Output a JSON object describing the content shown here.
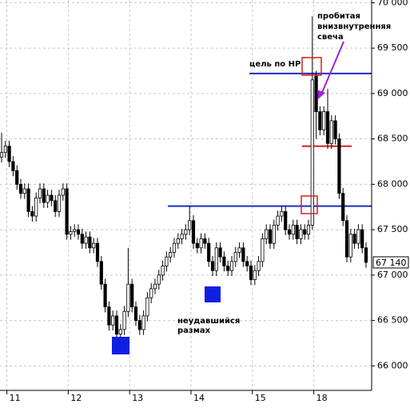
{
  "chart_data": {
    "type": "candlestick",
    "categories": [
      null,
      null,
      "11",
      null,
      null,
      null,
      null,
      null,
      null,
      null,
      null,
      null,
      null,
      null,
      null,
      null,
      null,
      null,
      "12",
      null,
      null,
      null,
      null,
      null,
      null,
      null,
      null,
      null,
      null,
      null,
      null,
      null,
      null,
      null,
      "13",
      null,
      null,
      null,
      null,
      null,
      null,
      null,
      null,
      null,
      null,
      null,
      null,
      null,
      null,
      null,
      "14",
      null,
      null,
      null,
      null,
      null,
      null,
      null,
      null,
      null,
      null,
      null,
      null,
      null,
      null,
      null,
      "15",
      null,
      null,
      null,
      null,
      null,
      null,
      null,
      null,
      null,
      null,
      null,
      null,
      null,
      null,
      null,
      "18",
      null,
      null,
      null,
      null,
      null,
      null,
      null,
      null,
      null,
      null,
      null,
      null,
      null
    ],
    "open": [
      68300,
      68350,
      68420,
      68250,
      68150,
      68000,
      67900,
      67950,
      67700,
      67650,
      67850,
      67950,
      67800,
      67880,
      67820,
      67700,
      67880,
      67950,
      67450,
      67480,
      67500,
      67450,
      67350,
      67420,
      67300,
      67350,
      67150,
      66900,
      66650,
      66450,
      66550,
      66350,
      66400,
      66600,
      66900,
      66650,
      66500,
      66400,
      66550,
      66750,
      66850,
      66900,
      67000,
      67100,
      67200,
      67250,
      67350,
      67400,
      67450,
      67500,
      67600,
      67350,
      67300,
      67400,
      67350,
      67150,
      67050,
      67300,
      67200,
      67100,
      67050,
      67150,
      67250,
      67300,
      67150,
      67100,
      66950,
      67050,
      67150,
      67400,
      67500,
      67350,
      67550,
      67650,
      67700,
      67500,
      67450,
      67550,
      67400,
      67500,
      67450,
      67550,
      69200,
      68800,
      68600,
      68800,
      68450,
      68700,
      68500,
      67900,
      67600,
      67200,
      67450,
      67350,
      67500,
      67300
    ],
    "high": [
      68570,
      68480,
      68480,
      68310,
      68210,
      68060,
      68010,
      68010,
      67760,
      67910,
      68010,
      68010,
      67940,
      67940,
      67880,
      67940,
      68010,
      68010,
      67540,
      67560,
      67560,
      67510,
      67480,
      67480,
      67410,
      67410,
      67210,
      66960,
      66710,
      66610,
      66610,
      66460,
      66660,
      67300,
      66960,
      66710,
      66560,
      66610,
      66810,
      66910,
      66960,
      67060,
      67160,
      67260,
      67310,
      67410,
      67460,
      67510,
      67560,
      67760,
      67660,
      67410,
      67460,
      67460,
      67410,
      67210,
      67360,
      67360,
      67260,
      67160,
      67210,
      67310,
      67360,
      67360,
      67210,
      67160,
      67110,
      67210,
      67460,
      67560,
      67560,
      67610,
      67710,
      67760,
      67760,
      67560,
      67610,
      67610,
      67560,
      67560,
      67610,
      69850,
      69250,
      68860,
      68860,
      69050,
      68760,
      68760,
      68560,
      67960,
      67660,
      67510,
      67510,
      67560,
      67560,
      67360
    ],
    "low": [
      68240,
      68290,
      68190,
      68090,
      67940,
      67840,
      67840,
      67640,
      67590,
      67590,
      67790,
      67740,
      67740,
      67760,
      67640,
      67640,
      67820,
      67390,
      67390,
      67420,
      67390,
      67290,
      67290,
      67240,
      67240,
      67090,
      66840,
      66590,
      66390,
      66390,
      66200,
      66290,
      66340,
      66540,
      66590,
      66440,
      66340,
      66340,
      66490,
      66690,
      66790,
      66840,
      66940,
      67040,
      67140,
      67190,
      67290,
      67340,
      67390,
      67440,
      67290,
      67240,
      67240,
      67290,
      67090,
      66990,
      66990,
      67140,
      67040,
      66990,
      66990,
      67090,
      67190,
      67090,
      67040,
      66890,
      66890,
      66990,
      67090,
      67340,
      67290,
      67290,
      67490,
      67590,
      67440,
      67390,
      67390,
      67340,
      67340,
      67390,
      67390,
      67500,
      68500,
      68540,
      68540,
      68390,
      68390,
      68440,
      67840,
      67540,
      67140,
      67140,
      67290,
      67290,
      67240,
      67080
    ],
    "close": [
      68350,
      68420,
      68250,
      68150,
      68000,
      67900,
      67950,
      67700,
      67650,
      67850,
      67950,
      67800,
      67880,
      67820,
      67700,
      67880,
      67950,
      67450,
      67480,
      67500,
      67450,
      67350,
      67420,
      67300,
      67350,
      67150,
      66900,
      66650,
      66450,
      66550,
      66350,
      66400,
      66600,
      66900,
      66650,
      66500,
      66400,
      66550,
      66750,
      66850,
      66900,
      67000,
      67100,
      67200,
      67250,
      67350,
      67400,
      67450,
      67500,
      67600,
      67350,
      67300,
      67400,
      67350,
      67150,
      67050,
      67300,
      67200,
      67100,
      67050,
      67150,
      67250,
      67300,
      67150,
      67100,
      66950,
      67050,
      67150,
      67400,
      67500,
      67350,
      67550,
      67650,
      67700,
      67500,
      67450,
      67550,
      67400,
      67500,
      67450,
      67550,
      69150,
      68800,
      68600,
      68800,
      68450,
      68700,
      68500,
      67900,
      67600,
      67200,
      67450,
      67350,
      67500,
      67300,
      67140
    ],
    "last_price_label": "67 140",
    "ylim": [
      65730,
      70030
    ],
    "yticks": [
      {
        "value": 70000,
        "label": "70 000"
      },
      {
        "value": 69500,
        "label": "69 500"
      },
      {
        "value": 69000,
        "label": "69 000"
      },
      {
        "value": 68500,
        "label": "68 500"
      },
      {
        "value": 68000,
        "label": "68 000"
      },
      {
        "value": 67500,
        "label": "67 500"
      },
      {
        "value": 67000,
        "label": "67 000"
      },
      {
        "value": 66500,
        "label": "66 500"
      },
      {
        "value": 66000,
        "label": "66 000"
      }
    ],
    "grid": true,
    "hlines": [
      {
        "value": 69220,
        "color": "#1a2fc4"
      },
      {
        "value": 67760,
        "color": "#1a2fc4"
      },
      {
        "value": 68420,
        "color": "#d62020"
      }
    ],
    "annotations": [
      "цель по НР",
      "пробитая",
      "внизвнутренняя",
      "свеча",
      "неудавшийся",
      "размах"
    ]
  }
}
